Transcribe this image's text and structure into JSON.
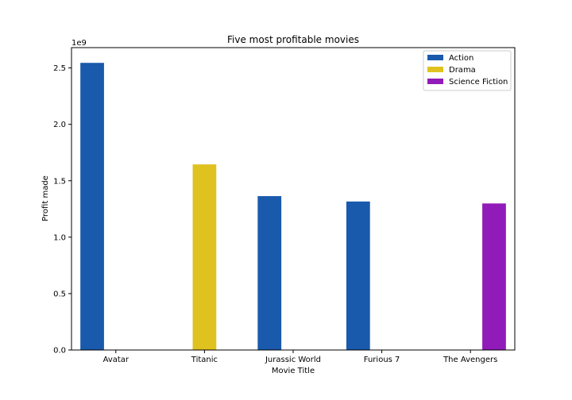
{
  "chart_data": {
    "type": "bar",
    "title": "Five most profitable movies",
    "xlabel": "Movie Title",
    "ylabel": "Profit made",
    "y_multiplier_label": "1e9",
    "categories": [
      "Avatar",
      "Titanic",
      "Jurassic World",
      "Furious 7",
      "The Avengers"
    ],
    "series": [
      {
        "name": "Action",
        "color": "#1a5aad",
        "values": [
          2.545,
          null,
          1.364,
          1.316,
          null
        ]
      },
      {
        "name": "Drama",
        "color": "#dfc220",
        "values": [
          null,
          1.645,
          null,
          null,
          null
        ]
      },
      {
        "name": "Science Fiction",
        "color": "#911bb8",
        "values": [
          null,
          null,
          null,
          null,
          1.299
        ]
      }
    ],
    "ylim": [
      0,
      2.68
    ],
    "yticks": [
      "0.0",
      "0.5",
      "1.0",
      "1.5",
      "2.0",
      "2.5"
    ],
    "ytick_values": [
      0,
      0.5,
      1.0,
      1.5,
      2.0,
      2.5
    ],
    "grid": false,
    "legend_position": "top-right"
  }
}
